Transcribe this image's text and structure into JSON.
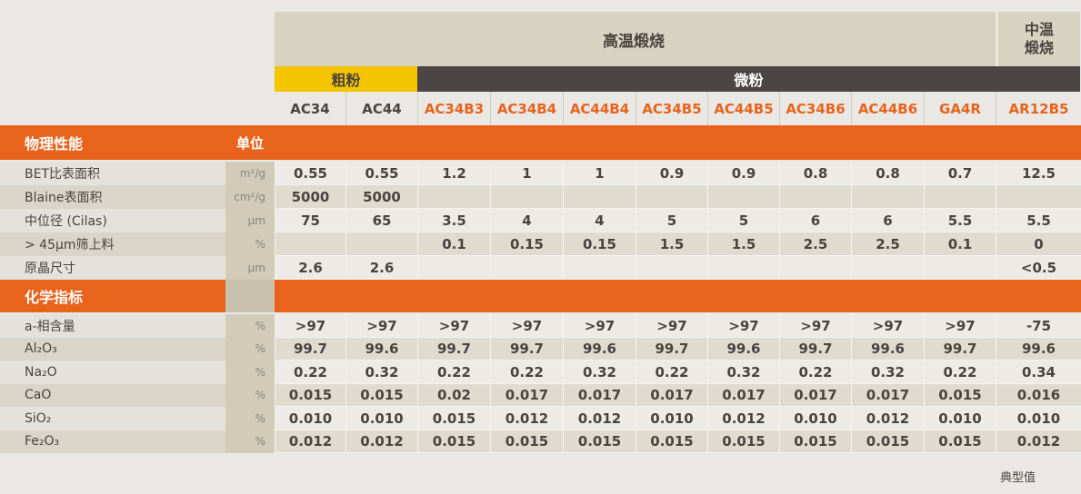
{
  "header": {
    "high_temp": "高温煅烧",
    "mid_temp_line1": "中温",
    "mid_temp_line2": "煅烧",
    "coarse": "粗粉",
    "fine": "微粉"
  },
  "products": [
    "AC34",
    "AC44",
    "AC34B3",
    "AC34B4",
    "AC44B4",
    "AC34B5",
    "AC44B5",
    "AC34B6",
    "AC44B6",
    "GA4R",
    "AR12B5"
  ],
  "sections": {
    "physical": "物理性能",
    "unit_head": "单位",
    "chemical": "化学指标"
  },
  "physical_rows": [
    {
      "label": "BET比表面积",
      "unit": "m²/g",
      "values": [
        "0.55",
        "0.55",
        "1.2",
        "1",
        "1",
        "0.9",
        "0.9",
        "0.8",
        "0.8",
        "0.7",
        "12.5"
      ]
    },
    {
      "label": "Blaine表面积",
      "unit": "cm²/g",
      "values": [
        "5000",
        "5000",
        "",
        "",
        "",
        "",
        "",
        "",
        "",
        "",
        ""
      ]
    },
    {
      "label": "中位径 (Cilas)",
      "unit": "μm",
      "values": [
        "75",
        "65",
        "3.5",
        "4",
        "4",
        "5",
        "5",
        "6",
        "6",
        "5.5",
        "5.5"
      ]
    },
    {
      "label": "> 45μm筛上料",
      "unit": "%",
      "values": [
        "",
        "",
        "0.1",
        "0.15",
        "0.15",
        "1.5",
        "1.5",
        "2.5",
        "2.5",
        "0.1",
        "0"
      ]
    },
    {
      "label": "原晶尺寸",
      "unit": "μm",
      "values": [
        "2.6",
        "2.6",
        "",
        "",
        "",
        "",
        "",
        "",
        "",
        "",
        "<0.5"
      ]
    }
  ],
  "chemical_rows": [
    {
      "label": "a-相含量",
      "unit": "%",
      "values": [
        ">97",
        ">97",
        ">97",
        ">97",
        ">97",
        ">97",
        ">97",
        ">97",
        ">97",
        ">97",
        "-75"
      ]
    },
    {
      "label": "Al₂O₃",
      "unit": "%",
      "values": [
        "99.7",
        "99.6",
        "99.7",
        "99.7",
        "99.6",
        "99.7",
        "99.6",
        "99.7",
        "99.6",
        "99.7",
        "99.6"
      ]
    },
    {
      "label": "Na₂O",
      "unit": "%",
      "values": [
        "0.22",
        "0.32",
        "0.22",
        "0.22",
        "0.32",
        "0.22",
        "0.32",
        "0.22",
        "0.32",
        "0.22",
        "0.34"
      ]
    },
    {
      "label": "CaO",
      "unit": "%",
      "values": [
        "0.015",
        "0.015",
        "0.02",
        "0.017",
        "0.017",
        "0.017",
        "0.017",
        "0.017",
        "0.017",
        "0.015",
        "0.016"
      ]
    },
    {
      "label": "SiO₂",
      "unit": "%",
      "values": [
        "0.010",
        "0.010",
        "0.015",
        "0.012",
        "0.012",
        "0.010",
        "0.012",
        "0.010",
        "0.012",
        "0.010",
        "0.010"
      ]
    },
    {
      "label": "Fe₂O₃",
      "unit": "%",
      "values": [
        "0.012",
        "0.012",
        "0.015",
        "0.015",
        "0.015",
        "0.015",
        "0.015",
        "0.015",
        "0.015",
        "0.015",
        "0.012"
      ]
    }
  ],
  "footnote": "典型值",
  "colors": {
    "orange": "#e8631c",
    "yellow": "#f5c400",
    "dark": "#4b4645",
    "beige": "#d8d2c0",
    "row_light": "#ecebe6",
    "row_dark": "#dfdccf"
  }
}
